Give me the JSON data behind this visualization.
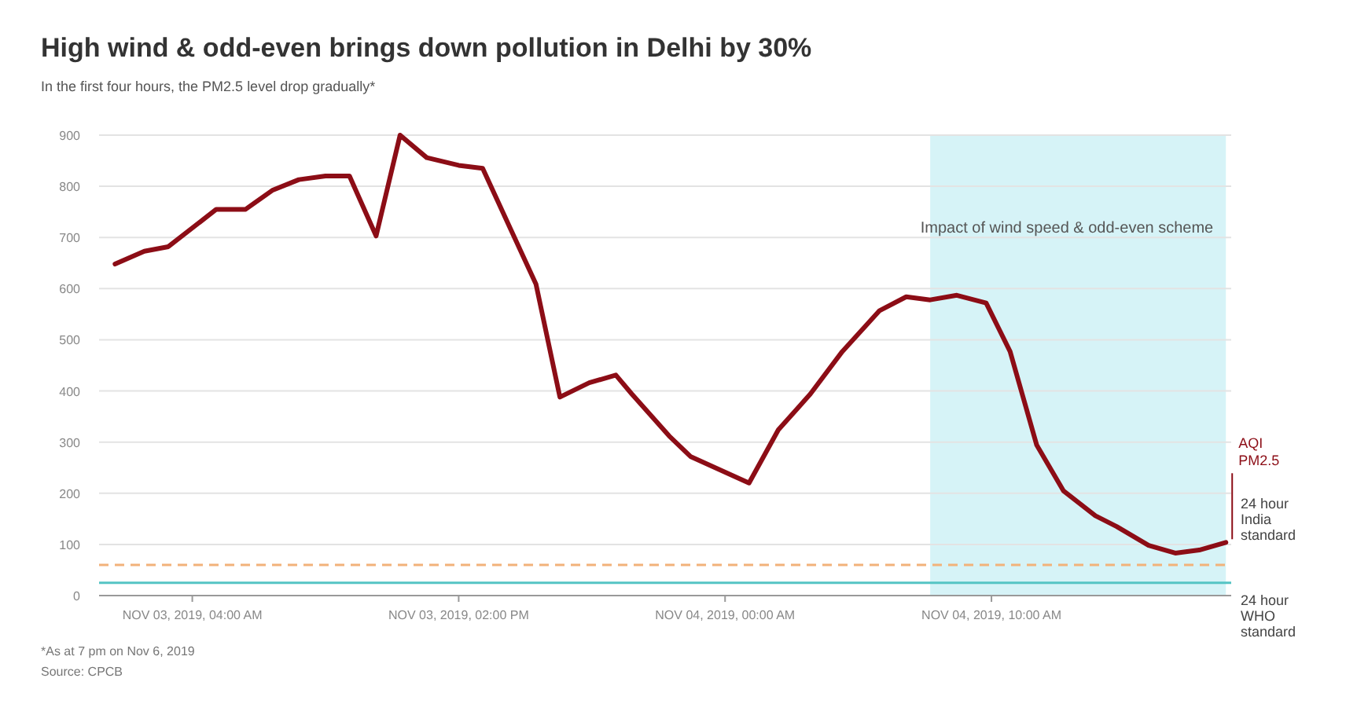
{
  "chart_data": {
    "type": "line",
    "title": "High wind & odd-even brings down pollution in Delhi by 30%",
    "subtitle": "In the first four hours, the PM2.5 level drop gradually*",
    "x": [
      "2019-11-03T01:06",
      "2019-11-03T02:12",
      "2019-11-03T03:06",
      "2019-11-03T04:54",
      "2019-11-03T06:00",
      "2019-11-03T07:00",
      "2019-11-03T08:00",
      "2019-11-03T09:00",
      "2019-11-03T09:54",
      "2019-11-03T10:54",
      "2019-11-03T11:48",
      "2019-11-03T12:48",
      "2019-11-03T14:00",
      "2019-11-03T14:54",
      "2019-11-03T15:54",
      "2019-11-03T16:54",
      "2019-11-03T17:48",
      "2019-11-03T18:54",
      "2019-11-03T19:54",
      "2019-11-03T20:30",
      "2019-11-03T21:54",
      "2019-11-03T22:42",
      "2019-11-04T00:54",
      "2019-11-04T02:00",
      "2019-11-04T03:12",
      "2019-11-04T04:24",
      "2019-11-04T05:48",
      "2019-11-04T06:48",
      "2019-11-04T07:42",
      "2019-11-04T08:42",
      "2019-11-04T09:48",
      "2019-11-04T10:42",
      "2019-11-04T11:42",
      "2019-11-04T12:42",
      "2019-11-04T13:54",
      "2019-11-04T14:42",
      "2019-11-04T15:54",
      "2019-11-04T16:54",
      "2019-11-04T17:48",
      "2019-11-04T18:48"
    ],
    "series": [
      {
        "name": "AQI PM2.5",
        "color": "#8c0d16",
        "values": [
          648,
          673,
          682,
          755,
          755,
          792,
          813,
          820,
          820,
          703,
          900,
          856,
          841,
          835,
          722,
          609,
          388,
          416,
          431,
          394,
          312,
          272,
          220,
          324,
          394,
          477,
          557,
          584,
          578,
          587,
          572,
          477,
          294,
          205,
          156,
          135,
          98,
          83,
          89,
          104
        ]
      }
    ],
    "xlim": [
      "2019-11-03T00:30",
      "2019-11-04T19:00"
    ],
    "xticks": [
      {
        "value": "2019-11-03T04:00",
        "label": "NOV 03, 2019, 04:00 AM"
      },
      {
        "value": "2019-11-03T14:00",
        "label": "NOV 03, 2019, 02:00 PM"
      },
      {
        "value": "2019-11-04T00:00",
        "label": "NOV 04, 2019, 00:00 AM"
      },
      {
        "value": "2019-11-04T10:00",
        "label": "NOV 04, 2019, 10:00 AM"
      }
    ],
    "ylim": [
      0,
      900
    ],
    "yticks": [
      0,
      100,
      200,
      300,
      400,
      500,
      600,
      700,
      800,
      900
    ],
    "grid": "y",
    "legend": false,
    "marker": "none",
    "line_style": "solid",
    "bands": [
      {
        "axis": "x",
        "from": "2019-11-04T07:42",
        "to": "2019-11-04T18:48",
        "label": "Impact of wind speed & odd-even scheme",
        "color": "#d6f3f7"
      }
    ],
    "ref_lines": [
      {
        "axis": "y",
        "value": 60,
        "label": "24 hour India standard",
        "color": "#f2b27a",
        "line_style": "dashed"
      },
      {
        "axis": "y",
        "value": 25,
        "label": "24 hour WHO standard",
        "color": "#55c4c4",
        "line_style": "solid"
      }
    ],
    "annotations": [
      "*As at 7 pm on Nov 6, 2019",
      "Source: CPCB"
    ]
  }
}
